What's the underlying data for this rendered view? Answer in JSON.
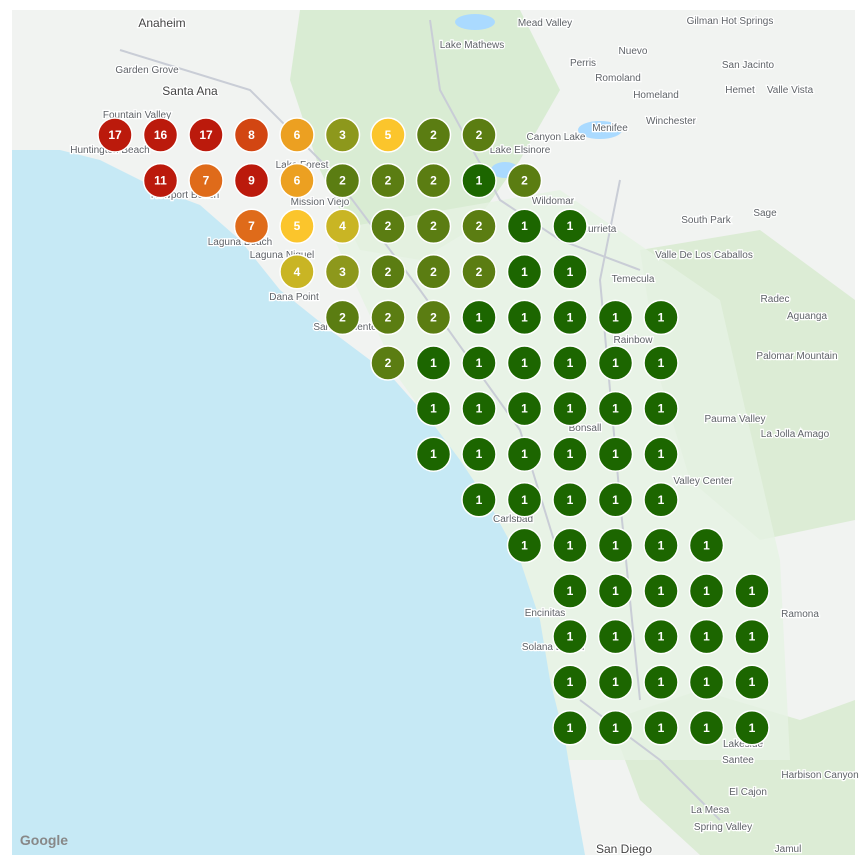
{
  "map": {
    "places": [
      "Anaheim",
      "Garden Grove",
      "Santa Ana",
      "Fountain Valley",
      "Huntington Beach",
      "Newport Beach",
      "Lake Forest",
      "Mission Viejo",
      "Laguna Beach",
      "Laguna Niguel",
      "Dana Point",
      "San Clemente",
      "Lake Mathews",
      "Mead Valley",
      "Perris",
      "Nuevo",
      "Gilman Hot Springs",
      "San Jacinto",
      "Romoland",
      "Homeland",
      "Hemet",
      "Valle Vista",
      "Menifee",
      "Winchester",
      "Canyon Lake",
      "Lake Elsinore",
      "Wildomar",
      "Murrieta",
      "Temecula",
      "South Park",
      "Sage",
      "Valle De Los Caballos",
      "Radec",
      "Aguanga",
      "Rainbow",
      "Palomar Mountain",
      "Pauma Valley",
      "La Jolla Amago",
      "Bonsall",
      "Valley Center",
      "Carlsbad",
      "Encinitas",
      "Solana Beach",
      "Ramona",
      "Lakeside",
      "Santee",
      "Harbison Canyon",
      "El Cajon",
      "La Mesa",
      "Spring Valley",
      "San Diego",
      "Jamul"
    ],
    "attribution": "Google",
    "clusters": [
      [
        17,
        16,
        17,
        8,
        6,
        3,
        5,
        2,
        2,
        null,
        null,
        null,
        null,
        null,
        null
      ],
      [
        null,
        11,
        7,
        9,
        6,
        2,
        2,
        2,
        1,
        2,
        null,
        null,
        null,
        null,
        null
      ],
      [
        null,
        null,
        null,
        7,
        5,
        4,
        2,
        2,
        2,
        1,
        1,
        null,
        null,
        null,
        null
      ],
      [
        null,
        null,
        null,
        null,
        4,
        3,
        2,
        2,
        2,
        1,
        1,
        null,
        null,
        null,
        null
      ],
      [
        null,
        null,
        null,
        null,
        null,
        2,
        2,
        2,
        1,
        1,
        1,
        1,
        1,
        null,
        null
      ],
      [
        null,
        null,
        null,
        null,
        null,
        null,
        2,
        1,
        1,
        1,
        1,
        1,
        1,
        null,
        null
      ],
      [
        null,
        null,
        null,
        null,
        null,
        null,
        null,
        1,
        1,
        1,
        1,
        1,
        1,
        null,
        null
      ],
      [
        null,
        null,
        null,
        null,
        null,
        null,
        null,
        1,
        1,
        1,
        1,
        1,
        1,
        null,
        null
      ],
      [
        null,
        null,
        null,
        null,
        null,
        null,
        null,
        null,
        1,
        1,
        1,
        1,
        1,
        null,
        null
      ],
      [
        null,
        null,
        null,
        null,
        null,
        null,
        null,
        null,
        null,
        1,
        1,
        1,
        1,
        1,
        null
      ],
      [
        null,
        null,
        null,
        null,
        null,
        null,
        null,
        null,
        null,
        null,
        1,
        1,
        1,
        1,
        1
      ],
      [
        null,
        null,
        null,
        null,
        null,
        null,
        null,
        null,
        null,
        null,
        1,
        1,
        1,
        1,
        1
      ],
      [
        null,
        null,
        null,
        null,
        null,
        null,
        null,
        null,
        null,
        null,
        1,
        1,
        1,
        1,
        1
      ],
      [
        null,
        null,
        null,
        null,
        null,
        null,
        null,
        null,
        null,
        null,
        1,
        1,
        1,
        1,
        1
      ]
    ]
  }
}
